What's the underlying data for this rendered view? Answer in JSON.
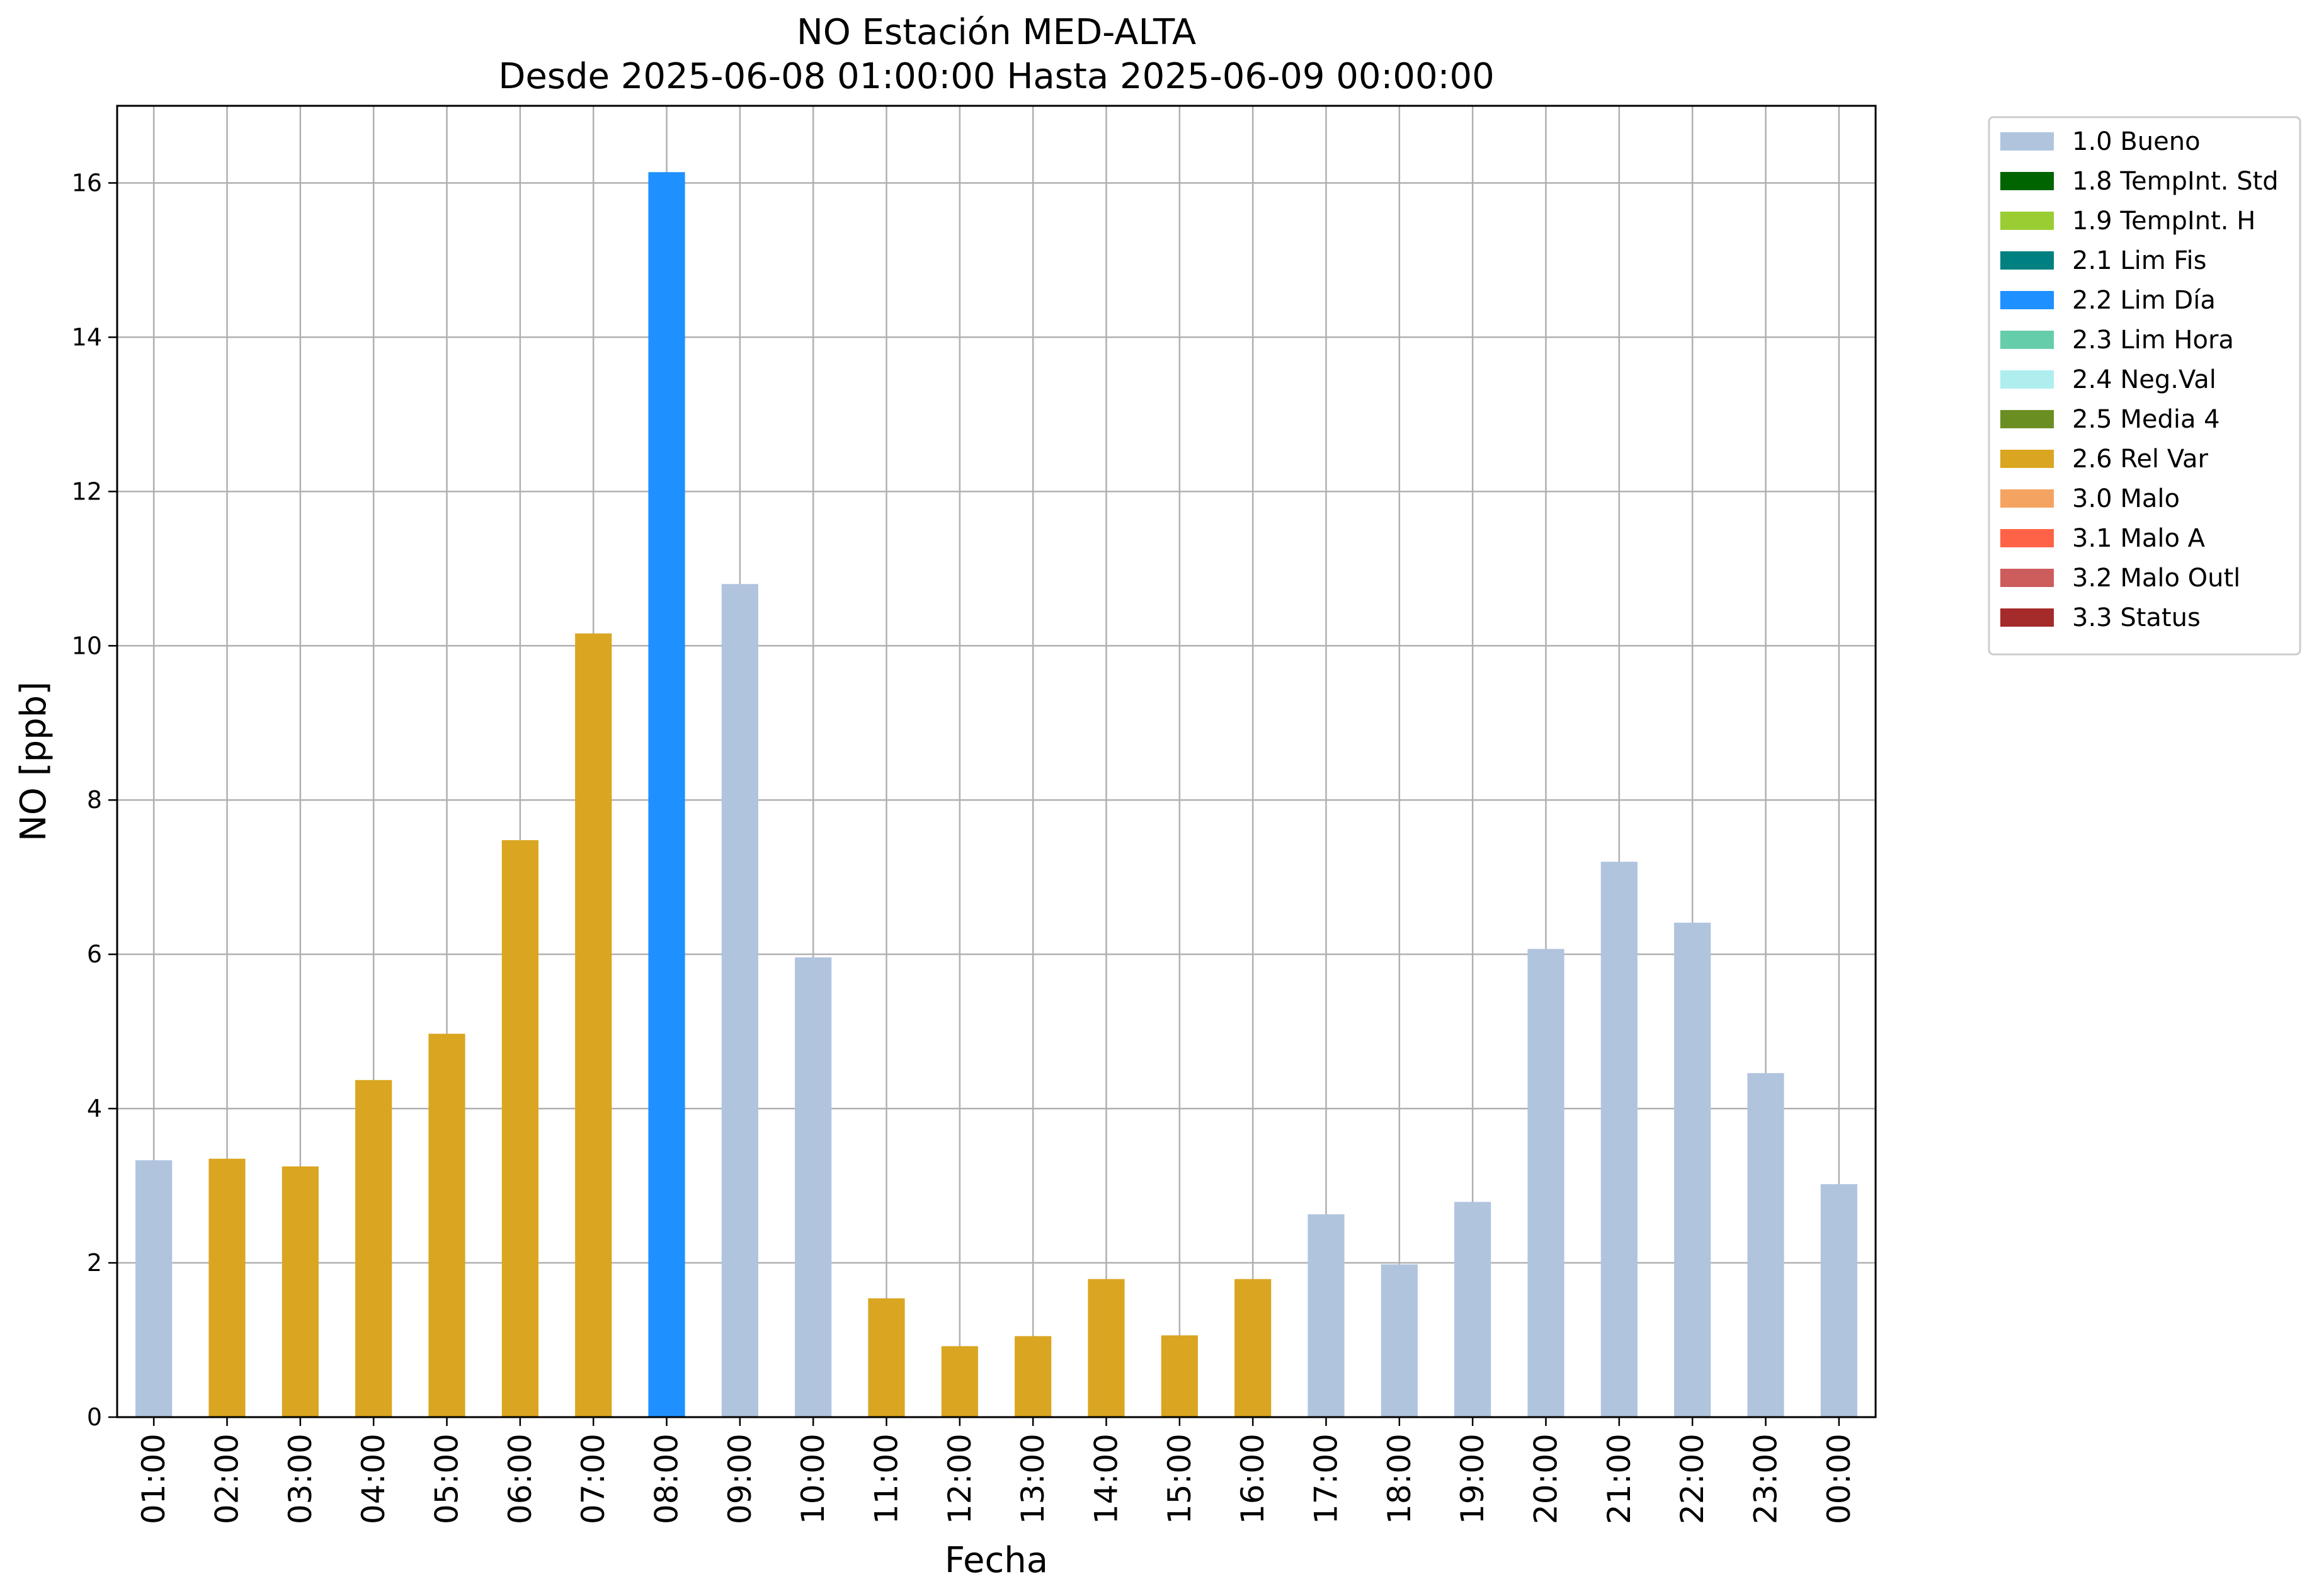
{
  "chart_data": {
    "type": "bar",
    "title": "NO Estación MED-ALTA",
    "subtitle": "Desde 2025-06-08 01:00:00 Hasta 2025-06-09 00:00:00",
    "xlabel": "Fecha",
    "ylabel": "NO [ppb]",
    "ylim": [
      0,
      17
    ],
    "yticks": [
      0,
      2,
      4,
      6,
      8,
      10,
      12,
      14,
      16
    ],
    "grid": true,
    "legend_position": "outside-top-right",
    "categories": [
      "01:00",
      "02:00",
      "03:00",
      "04:00",
      "05:00",
      "06:00",
      "07:00",
      "08:00",
      "09:00",
      "10:00",
      "11:00",
      "12:00",
      "13:00",
      "14:00",
      "15:00",
      "16:00",
      "17:00",
      "18:00",
      "19:00",
      "20:00",
      "21:00",
      "22:00",
      "23:00",
      "00:00"
    ],
    "values": [
      3.33,
      3.35,
      3.25,
      4.37,
      4.97,
      7.48,
      10.16,
      16.14,
      10.8,
      5.96,
      1.54,
      0.92,
      1.05,
      1.79,
      1.06,
      1.79,
      2.63,
      1.98,
      2.79,
      6.07,
      7.2,
      6.41,
      4.46,
      3.02
    ],
    "flags": [
      "1.0 Bueno",
      "2.6 Rel Var",
      "2.6 Rel Var",
      "2.6 Rel Var",
      "2.6 Rel Var",
      "2.6 Rel Var",
      "2.6 Rel Var",
      "2.2 Lim Día",
      "1.0 Bueno",
      "1.0 Bueno",
      "2.6 Rel Var",
      "2.6 Rel Var",
      "2.6 Rel Var",
      "2.6 Rel Var",
      "2.6 Rel Var",
      "2.6 Rel Var",
      "1.0 Bueno",
      "1.0 Bueno",
      "1.0 Bueno",
      "1.0 Bueno",
      "1.0 Bueno",
      "1.0 Bueno",
      "1.0 Bueno",
      "1.0 Bueno"
    ],
    "legend": [
      {
        "label": "1.0 Bueno",
        "color": "#b0c4de"
      },
      {
        "label": "1.8 TempInt. Std",
        "color": "#006400"
      },
      {
        "label": "1.9 TempInt. H",
        "color": "#9acd32"
      },
      {
        "label": "2.1 Lim Fis",
        "color": "#008080"
      },
      {
        "label": "2.2 Lim Día",
        "color": "#1e90ff"
      },
      {
        "label": "2.3 Lim Hora",
        "color": "#66cdaa"
      },
      {
        "label": "2.4 Neg.Val",
        "color": "#afeeee"
      },
      {
        "label": "2.5 Media 4",
        "color": "#6b8e23"
      },
      {
        "label": "2.6 Rel Var",
        "color": "#daa520"
      },
      {
        "label": "3.0 Malo",
        "color": "#f4a460"
      },
      {
        "label": "3.1 Malo A",
        "color": "#ff6347"
      },
      {
        "label": "3.2 Malo Outl",
        "color": "#cd5c5c"
      },
      {
        "label": "3.3 Status",
        "color": "#a52a2a"
      }
    ]
  }
}
